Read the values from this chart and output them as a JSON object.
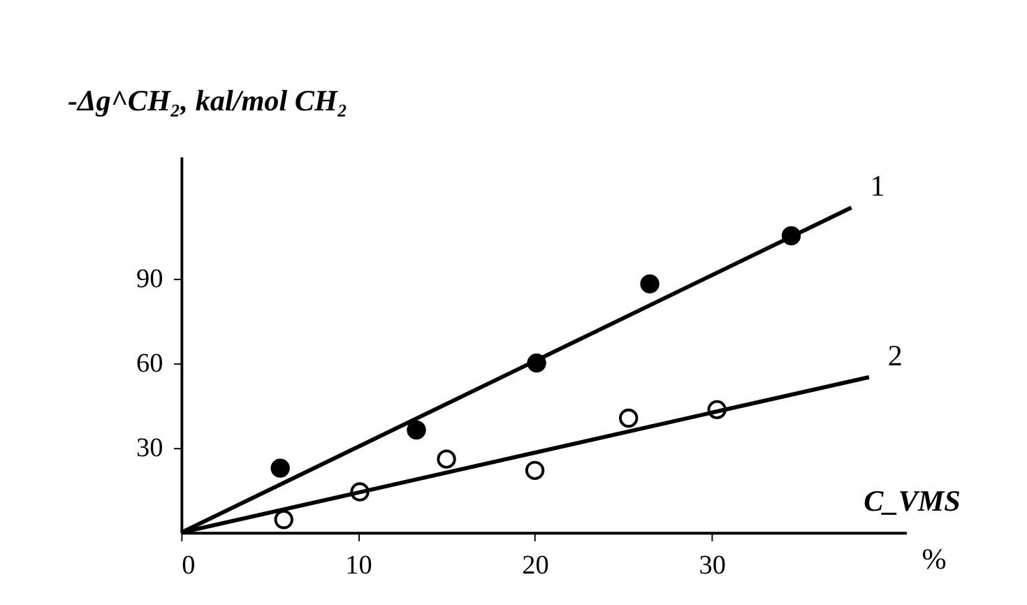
{
  "chart_data": {
    "type": "scatter",
    "xlabel": "C_VMS",
    "ylabel": "-Δg^CH₂, kal/mol CH₂",
    "annotations": [
      "%"
    ],
    "xlim": [
      0,
      41
    ],
    "ylim": [
      0,
      133
    ],
    "xticks": [
      0,
      10,
      20,
      30
    ],
    "yticks": [
      30,
      60,
      90
    ],
    "grid": false,
    "series": [
      {
        "marker": "circle",
        "color": "#000000",
        "x": [
          5.6,
          13.3,
          20.1,
          26.5,
          34.5
        ],
        "values": [
          22.8,
          36.3,
          60,
          88,
          105
        ]
      },
      {
        "marker": "circle",
        "color": "#ffffff",
        "x": [
          5.8,
          10.1,
          15.0,
          20.0,
          25.3,
          30.3
        ],
        "values": [
          4.6,
          14.4,
          26,
          22,
          40.5,
          43.5
        ]
      },
      {
        "type": "line",
        "name": "1",
        "color": "#000000",
        "x": [
          0,
          37.9
        ],
        "values": [
          0,
          115
        ]
      },
      {
        "type": "line",
        "name": "2",
        "color": "#000000",
        "x": [
          0,
          38.9
        ],
        "values": [
          0,
          55
        ]
      }
    ]
  }
}
